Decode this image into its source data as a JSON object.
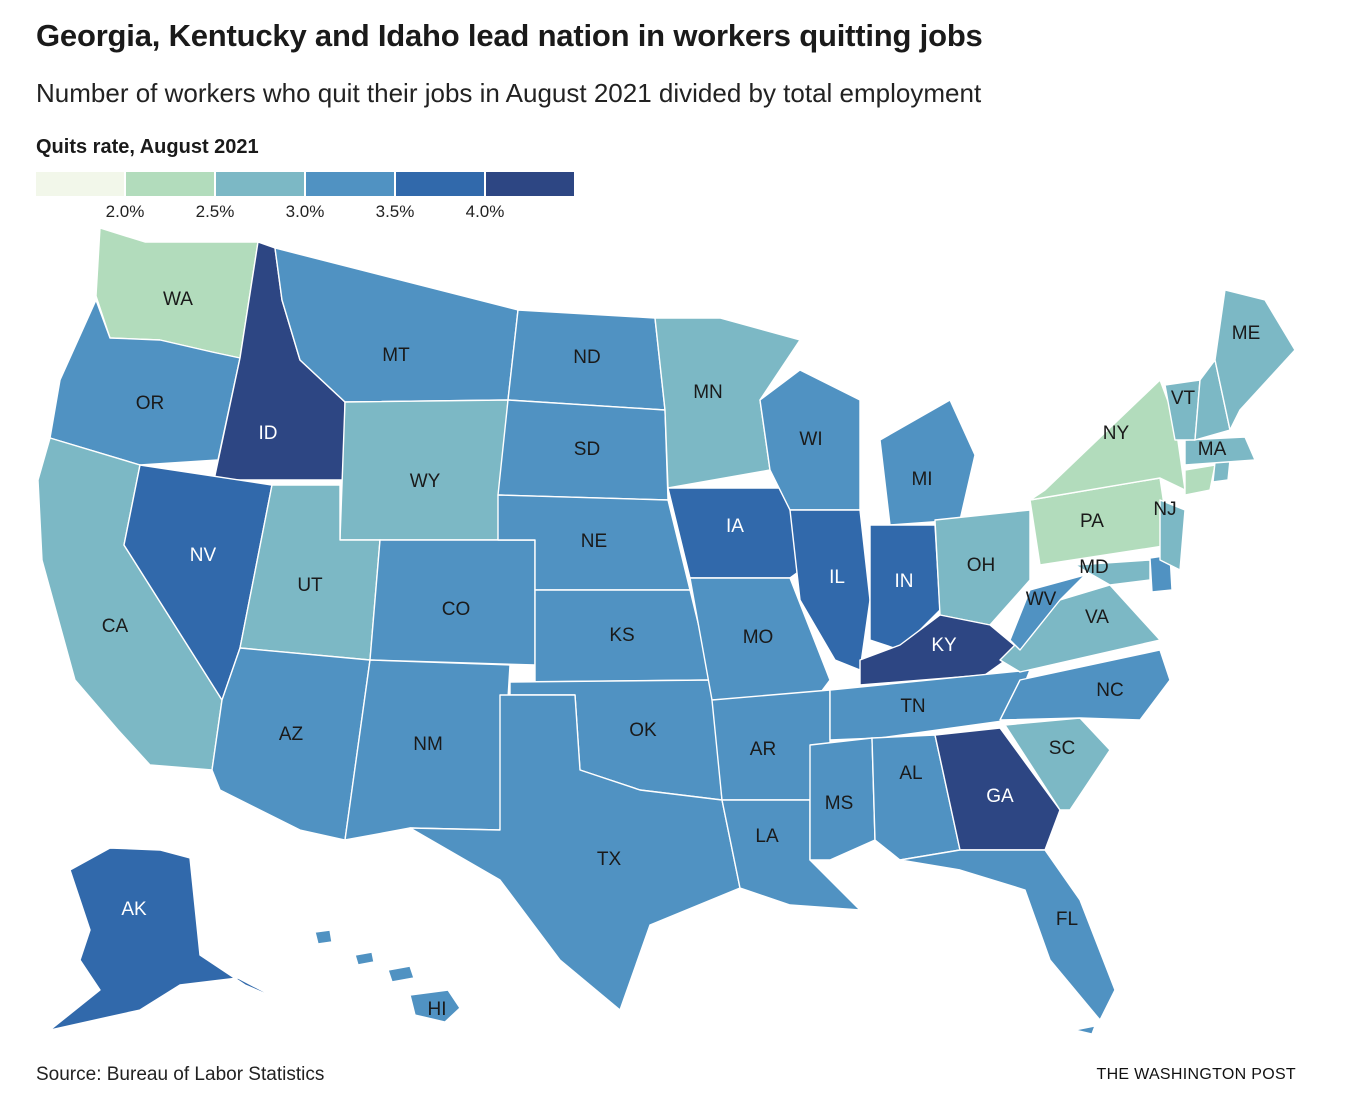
{
  "title": "Georgia, Kentucky and Idaho lead nation in workers quitting jobs",
  "subtitle": "Number of workers who quit their jobs in August 2021 divided by total employment",
  "legend": {
    "title": "Quits rate, August 2021",
    "ticks": [
      "2.0%",
      "2.5%",
      "3.0%",
      "3.5%",
      "4.0%"
    ],
    "colors": [
      "#f2f7ea",
      "#b2dcbc",
      "#7cb8c5",
      "#5092c2",
      "#3169ab",
      "#2d4683"
    ]
  },
  "map": {
    "states": [
      {
        "abbr": "WA",
        "bin": 1
      },
      {
        "abbr": "OR",
        "bin": 3
      },
      {
        "abbr": "CA",
        "bin": 2
      },
      {
        "abbr": "ID",
        "bin": 5
      },
      {
        "abbr": "NV",
        "bin": 4
      },
      {
        "abbr": "MT",
        "bin": 3
      },
      {
        "abbr": "WY",
        "bin": 2
      },
      {
        "abbr": "UT",
        "bin": 2
      },
      {
        "abbr": "AZ",
        "bin": 3
      },
      {
        "abbr": "CO",
        "bin": 3
      },
      {
        "abbr": "NM",
        "bin": 3
      },
      {
        "abbr": "ND",
        "bin": 3
      },
      {
        "abbr": "SD",
        "bin": 3
      },
      {
        "abbr": "NE",
        "bin": 3
      },
      {
        "abbr": "KS",
        "bin": 3
      },
      {
        "abbr": "OK",
        "bin": 3
      },
      {
        "abbr": "TX",
        "bin": 3
      },
      {
        "abbr": "MN",
        "bin": 2
      },
      {
        "abbr": "IA",
        "bin": 4
      },
      {
        "abbr": "MO",
        "bin": 3
      },
      {
        "abbr": "AR",
        "bin": 3
      },
      {
        "abbr": "LA",
        "bin": 3
      },
      {
        "abbr": "WI",
        "bin": 3
      },
      {
        "abbr": "IL",
        "bin": 4
      },
      {
        "abbr": "MI",
        "bin": 3
      },
      {
        "abbr": "IN",
        "bin": 4
      },
      {
        "abbr": "OH",
        "bin": 2
      },
      {
        "abbr": "KY",
        "bin": 5
      },
      {
        "abbr": "TN",
        "bin": 3
      },
      {
        "abbr": "MS",
        "bin": 3
      },
      {
        "abbr": "AL",
        "bin": 3
      },
      {
        "abbr": "GA",
        "bin": 5
      },
      {
        "abbr": "FL",
        "bin": 3
      },
      {
        "abbr": "SC",
        "bin": 2
      },
      {
        "abbr": "NC",
        "bin": 3
      },
      {
        "abbr": "VA",
        "bin": 2
      },
      {
        "abbr": "WV",
        "bin": 3
      },
      {
        "abbr": "MD",
        "bin": 2
      },
      {
        "abbr": "DE",
        "bin": 3
      },
      {
        "abbr": "PA",
        "bin": 1
      },
      {
        "abbr": "NJ",
        "bin": 2
      },
      {
        "abbr": "NY",
        "bin": 1
      },
      {
        "abbr": "CT",
        "bin": 1
      },
      {
        "abbr": "RI",
        "bin": 2
      },
      {
        "abbr": "MA",
        "bin": 2
      },
      {
        "abbr": "VT",
        "bin": 2
      },
      {
        "abbr": "NH",
        "bin": 2
      },
      {
        "abbr": "ME",
        "bin": 2
      },
      {
        "abbr": "AK",
        "bin": 4
      },
      {
        "abbr": "HI",
        "bin": 3
      }
    ]
  },
  "footer": {
    "source": "Source: Bureau of Labor Statistics",
    "credit": "THE WASHINGTON POST"
  }
}
